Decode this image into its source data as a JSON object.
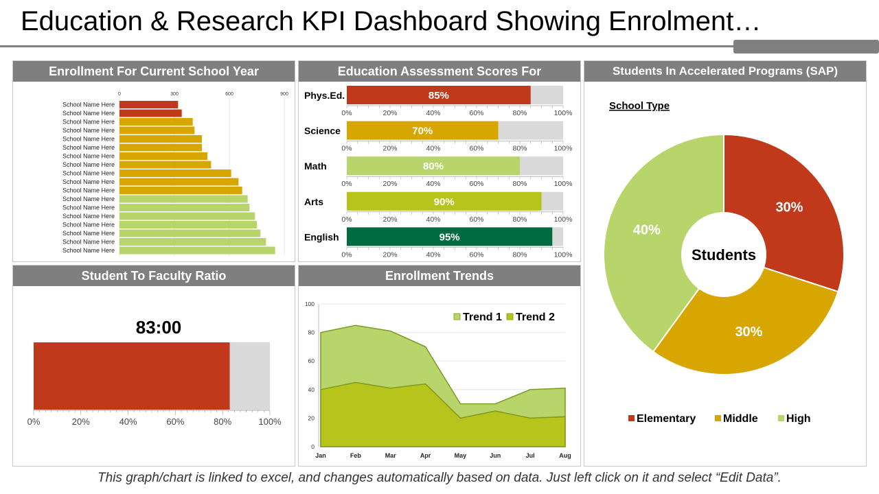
{
  "page": {
    "title": "Education & Research KPI Dashboard Showing Enrolment…",
    "footer": "This graph/chart is linked to excel, and changes automatically based on data. Just left click on it and select “Edit Data”."
  },
  "panels": {
    "enrollment": "Enrollment For Current School Year",
    "assessment": "Education Assessment Scores For",
    "sap": "Students In Accelerated Programs (SAP)",
    "ratio": "Student To Faculty  Ratio",
    "trends": "Enrollment Trends"
  },
  "colors": {
    "red": "#c0391b",
    "gold": "#d8a600",
    "lightgreen": "#b7d56b",
    "olive": "#b6c41b",
    "darkgreen": "#006a40",
    "gray": "#d9d9d9",
    "header": "#7f7f7f"
  },
  "chart_data": [
    {
      "id": "enrollment",
      "type": "bar",
      "orientation": "horizontal",
      "categories": [
        "School Name Here",
        "School Name Here",
        "School Name Here",
        "School Name Here",
        "School Name Here",
        "School Name Here",
        "School Name Here",
        "School Name Here",
        "School Name Here",
        "School Name Here",
        "School Name Here",
        "School Name Here",
        "School Name Here",
        "School Name Here",
        "School Name Here",
        "School Name Here",
        "School Name Here",
        "School Name Here"
      ],
      "values": [
        320,
        340,
        400,
        410,
        450,
        450,
        480,
        500,
        610,
        650,
        670,
        700,
        710,
        740,
        750,
        770,
        800,
        850
      ],
      "color_groups": [
        "red",
        "red",
        "gold",
        "gold",
        "gold",
        "gold",
        "gold",
        "gold",
        "gold",
        "gold",
        "gold",
        "lightgreen",
        "lightgreen",
        "lightgreen",
        "lightgreen",
        "lightgreen",
        "lightgreen",
        "lightgreen"
      ],
      "xticks": [
        "0",
        "300",
        "600",
        "900"
      ],
      "xlim": [
        0,
        900
      ]
    },
    {
      "id": "assessment",
      "type": "bar",
      "orientation": "horizontal",
      "categories": [
        "Phys.Ed.",
        "Science",
        "Math",
        "Arts",
        "English"
      ],
      "values": [
        85,
        70,
        80,
        90,
        95
      ],
      "labels": [
        "85%",
        "70%",
        "80%",
        "90%",
        "95%"
      ],
      "colors": [
        "#c0391b",
        "#d8a600",
        "#b7d56b",
        "#b6c41b",
        "#006a40"
      ],
      "xticks": [
        "0%",
        "20%",
        "40%",
        "60%",
        "80%",
        "100%"
      ],
      "xlim": [
        0,
        100
      ]
    },
    {
      "id": "sap",
      "type": "pie",
      "subtitle": "School Type",
      "center_label": "Students",
      "slices": [
        {
          "name": "Elementary",
          "value": 30,
          "label": "30%",
          "color": "#c0391b"
        },
        {
          "name": "Middle",
          "value": 30,
          "label": "30%",
          "color": "#d8a600"
        },
        {
          "name": "High",
          "value": 40,
          "label": "40%",
          "color": "#b7d56b"
        }
      ],
      "legend": "bottom"
    },
    {
      "id": "ratio",
      "type": "bar",
      "orientation": "horizontal",
      "value_label": "83:00",
      "value": 83,
      "color": "#c0391b",
      "xticks": [
        "0%",
        "20%",
        "40%",
        "60%",
        "80%",
        "100%"
      ],
      "xlim": [
        0,
        100
      ]
    },
    {
      "id": "trends",
      "type": "area",
      "categories": [
        "Jan",
        "Feb",
        "Mar",
        "Apr",
        "May",
        "Jun",
        "Jul",
        "Aug"
      ],
      "series": [
        {
          "name": "Trend 1",
          "values": [
            80,
            85,
            81,
            70,
            30,
            30,
            40,
            41
          ],
          "color": "#b7d56b"
        },
        {
          "name": "Trend 2",
          "values": [
            40,
            45,
            41,
            44,
            20,
            25,
            20,
            21
          ],
          "color": "#b6c41b"
        }
      ],
      "yticks": [
        "0",
        "20",
        "40",
        "60",
        "80",
        "100"
      ],
      "ylim": [
        0,
        100
      ],
      "legend": "top-right"
    }
  ]
}
